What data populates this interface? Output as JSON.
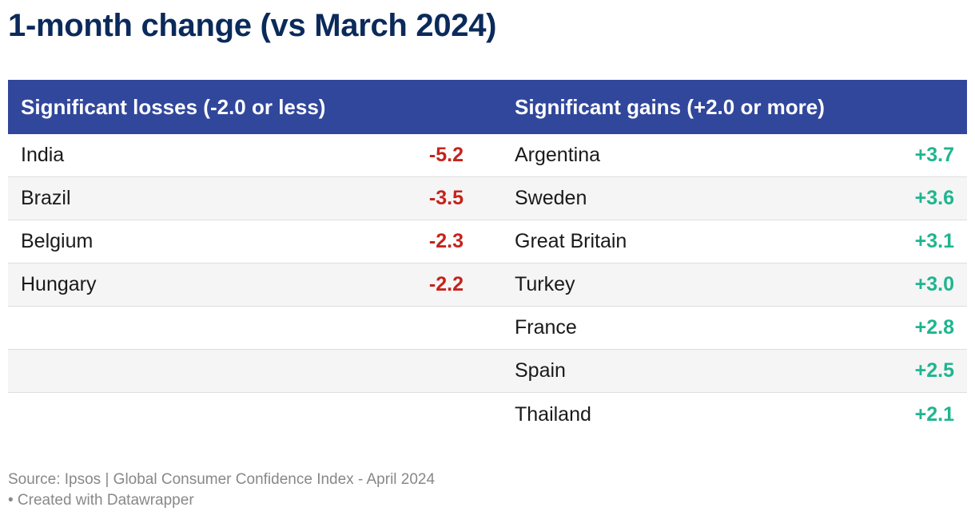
{
  "title": "1-month change (vs March 2024)",
  "colors": {
    "title": "#0b2a5b",
    "header_bg": "#31479c",
    "header_text": "#ffffff",
    "loss": "#c4241c",
    "gain": "#1fb58f",
    "row_shade": "#f5f5f5",
    "footer_text": "#888888"
  },
  "chart_data": {
    "type": "table",
    "title": "1-month change (vs March 2024)",
    "columns": [
      "Significant losses (-2.0 or less)",
      "Significant gains (+2.0 or more)"
    ],
    "losses": [
      {
        "country": "India",
        "value": "-5.2"
      },
      {
        "country": "Brazil",
        "value": "-3.5"
      },
      {
        "country": "Belgium",
        "value": "-2.3"
      },
      {
        "country": "Hungary",
        "value": "-2.2"
      }
    ],
    "gains": [
      {
        "country": "Argentina",
        "value": "+3.7"
      },
      {
        "country": "Sweden",
        "value": "+3.6"
      },
      {
        "country": "Great Britain",
        "value": "+3.1"
      },
      {
        "country": "Turkey",
        "value": "+3.0"
      },
      {
        "country": "France",
        "value": "+2.8"
      },
      {
        "country": "Spain",
        "value": "+2.5"
      },
      {
        "country": "Thailand",
        "value": "+2.1"
      }
    ]
  },
  "footer": {
    "source": "Source: Ipsos | Global Consumer Confidence Index - April 2024",
    "credit": "• Created with Datawrapper"
  }
}
